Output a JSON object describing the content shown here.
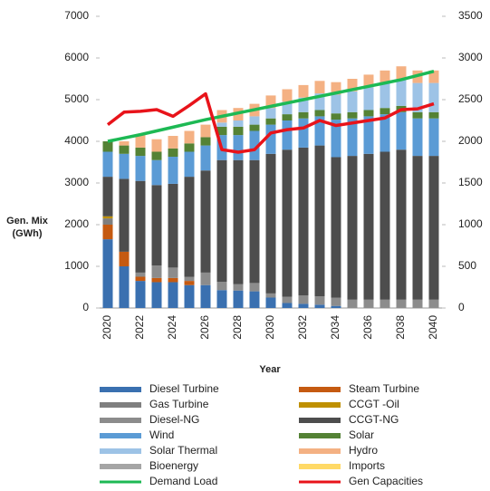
{
  "chart_data": {
    "type": "bar",
    "stacked": true,
    "y_label": [
      "Gen. Mix",
      "(GWh)"
    ],
    "x_label": "Year",
    "categories": [
      "2020",
      null,
      "2022",
      null,
      "2024",
      null,
      "2026",
      null,
      "2028",
      null,
      "2030",
      null,
      "2032",
      null,
      "2034",
      null,
      "2036",
      null,
      "2038",
      null,
      "2040"
    ],
    "ylim": [
      0,
      7000
    ],
    "yticks": [
      0,
      1000,
      2000,
      3000,
      4000,
      5000,
      6000,
      7000
    ],
    "y2lim": [
      0,
      3500
    ],
    "y2ticks": [
      0,
      500,
      1000,
      1500,
      2000,
      2500,
      3000,
      3500
    ],
    "series": [
      {
        "name": "Diesel Turbine",
        "color": "#3a70b0",
        "values": [
          1650,
          1000,
          650,
          620,
          620,
          550,
          550,
          430,
          420,
          400,
          250,
          120,
          100,
          80,
          50,
          0,
          0,
          0,
          0,
          0,
          0
        ]
      },
      {
        "name": "Steam Turbine",
        "color": "#c55a11",
        "values": [
          350,
          350,
          100,
          100,
          100,
          100,
          0,
          0,
          0,
          0,
          0,
          0,
          0,
          0,
          0,
          0,
          0,
          0,
          0,
          0,
          0
        ]
      },
      {
        "name": "Gas Turbine",
        "color": "#7f7f7f",
        "values": [
          150,
          0,
          0,
          0,
          0,
          0,
          0,
          0,
          0,
          0,
          0,
          0,
          0,
          0,
          0,
          0,
          0,
          0,
          0,
          0,
          0
        ]
      },
      {
        "name": "CCGT -Oil",
        "color": "#bf9000",
        "values": [
          50,
          0,
          0,
          0,
          0,
          0,
          0,
          0,
          0,
          0,
          0,
          0,
          0,
          0,
          0,
          0,
          0,
          0,
          0,
          0,
          0
        ]
      },
      {
        "name": "Diesel-NG",
        "color": "#8c8c8c",
        "values": [
          0,
          0,
          100,
          300,
          250,
          100,
          300,
          200,
          150,
          200,
          100,
          150,
          200,
          200,
          200,
          200,
          200,
          200,
          200,
          200,
          200
        ]
      },
      {
        "name": "CCGT-NG",
        "color": "#4d4d4d",
        "values": [
          950,
          1750,
          2200,
          1930,
          2010,
          2400,
          2450,
          2920,
          2980,
          2950,
          3350,
          3530,
          3550,
          3620,
          3370,
          3450,
          3500,
          3550,
          3600,
          3450,
          3450
        ]
      },
      {
        "name": "Wind",
        "color": "#5b9bd5",
        "values": [
          600,
          600,
          600,
          600,
          650,
          600,
          600,
          600,
          600,
          700,
          700,
          700,
          700,
          700,
          900,
          900,
          900,
          900,
          900,
          900,
          900
        ]
      },
      {
        "name": "Solar",
        "color": "#548235",
        "values": [
          250,
          200,
          200,
          200,
          200,
          200,
          200,
          200,
          200,
          150,
          150,
          150,
          150,
          150,
          150,
          150,
          150,
          150,
          150,
          150,
          150
        ]
      },
      {
        "name": "Solar Thermal",
        "color": "#9dc3e6",
        "values": [
          0,
          0,
          0,
          0,
          0,
          0,
          0,
          100,
          150,
          200,
          250,
          300,
          350,
          400,
          450,
          500,
          550,
          600,
          650,
          700,
          700
        ]
      },
      {
        "name": "Hydro",
        "color": "#f4b183",
        "values": [
          0,
          100,
          300,
          300,
          300,
          300,
          300,
          300,
          300,
          300,
          300,
          300,
          300,
          300,
          300,
          300,
          300,
          300,
          300,
          300,
          300
        ]
      },
      {
        "name": "Bioenergy",
        "color": "#a5a5a5",
        "values": [
          0,
          0,
          0,
          0,
          0,
          0,
          0,
          0,
          0,
          0,
          0,
          0,
          0,
          0,
          0,
          0,
          0,
          0,
          0,
          0,
          0
        ]
      },
      {
        "name": "Imports",
        "color": "#ffd966",
        "values": [
          0,
          0,
          0,
          0,
          0,
          0,
          0,
          0,
          0,
          0,
          0,
          0,
          0,
          0,
          0,
          0,
          0,
          0,
          0,
          0,
          0
        ]
      },
      {
        "name": "Demand Load",
        "color": "#1db954",
        "line": true,
        "values": [
          4000,
          4080,
          4160,
          4250,
          4340,
          4430,
          4520,
          4600,
          4680,
          4760,
          4840,
          4920,
          5000,
          5080,
          5160,
          5240,
          5320,
          5400,
          5480,
          5580,
          5680
        ]
      },
      {
        "name": "Gen Capacities",
        "color": "#e8131a",
        "line": true,
        "axis": "y2",
        "values": [
          2200,
          2350,
          2360,
          2380,
          2300,
          2430,
          2570,
          1900,
          1870,
          1900,
          2100,
          2140,
          2160,
          2250,
          2190,
          2220,
          2250,
          2280,
          2380,
          2390,
          2450
        ]
      }
    ]
  }
}
